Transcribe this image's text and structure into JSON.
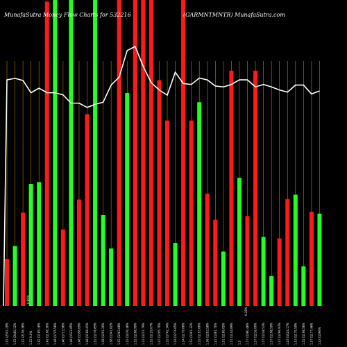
{
  "header": {
    "left_title": "MunafaSutra  Money Flow  Charts for 532216",
    "right_title": "(GARMNTMNTR) MunafaSutra.com"
  },
  "colors": {
    "background": "#000000",
    "up_bar": "#22ff22",
    "down_bar": "#ff1a1a",
    "grid": "#b8860b",
    "line": "#ffffff",
    "text": "#ffffff"
  },
  "chart_data": {
    "type": "bar",
    "ylim": [
      0,
      100
    ],
    "grid": "vertical",
    "categories": [
      "1.52 (2301.29%",
      "1.52 (2460.12%",
      "1.52 (2156.36%",
      "1.52 0.0%",
      "1.42 (1185.16%",
      "1.42 (1108.30%",
      "1.48 (1725.56%",
      "1.46 (1723.56%",
      "1.48 (1522.85%",
      "1.48 (1356.09%",
      "1.48 (1168.41%",
      "1.52 (1278.85%",
      "1.58 (1291.20%",
      "1.58 (1341.62%",
      "1.52 (1363.68%",
      "1.52 (1476.36%",
      "1.52 (1298.99%",
      "1.32 (1231.79%",
      "1.52 (1129.07%",
      "1.47 (1205.70%",
      "1.32 (1742.34%",
      "1.54 (1274.65%",
      "1.54 (1179.06%",
      "1.52 (1361.32%",
      "1.32 (1193.06%",
      "1.36 (1293.58%",
      "1.41 (1381.70%",
      "1.51 (1189.05%",
      "1.51 (1144.89%",
      "1.5",
      "1.57 (1580.48%",
      "1.57 (1216.00%",
      "1.57 (1238.53%",
      "1.57 (1198.59%",
      "1.47 (1296.93%",
      "1.43 (1424.17%",
      "1.53 (1175.59%",
      "1.52 (1198.56%",
      "1.57 (1177.46%",
      "1.43 (1596%"
    ],
    "annotations": [
      "0.89%",
      "0.28%"
    ],
    "series": [
      {
        "kind": "bar",
        "values": [
          15.4,
          19.6,
          30.5,
          39.9,
          40.5,
          99.5,
          100,
          25,
          100,
          34.8,
          62.7,
          100,
          29.7,
          18.8,
          100,
          69.6,
          100,
          100,
          100,
          73.8,
          60.6,
          20.6,
          100,
          60.6,
          66.6,
          36.7,
          28.2,
          17.8,
          76.9,
          41.9,
          29.4,
          76.9,
          22.6,
          9.8,
          22.1,
          34.9,
          36.4,
          13,
          30.8,
          30.2
        ],
        "colors": [
          "red",
          "green",
          "red",
          "green",
          "green",
          "red",
          "green",
          "red",
          "green",
          "red",
          "red",
          "green",
          "green",
          "green",
          "red",
          "green",
          "red",
          "red",
          "red",
          "red",
          "red",
          "green",
          "red",
          "red",
          "green",
          "red",
          "red",
          "green",
          "red",
          "green",
          "red",
          "red",
          "green",
          "green",
          "red",
          "red",
          "green",
          "green",
          "red",
          "green"
        ]
      },
      {
        "kind": "line",
        "values": [
          73.9,
          74.4,
          73.7,
          69.7,
          71.2,
          69.7,
          69.7,
          69,
          66.3,
          66.3,
          64.9,
          65.9,
          66.6,
          72.2,
          74.8,
          83.5,
          84.8,
          78.3,
          73,
          70.6,
          68.9,
          76.4,
          72.7,
          72.4,
          74.5,
          73.9,
          71.9,
          71.6,
          72.4,
          73.9,
          73.9,
          71.6,
          72.4,
          71.6,
          70.6,
          69.9,
          72.2,
          72.2,
          69.3,
          70.3
        ]
      }
    ]
  }
}
